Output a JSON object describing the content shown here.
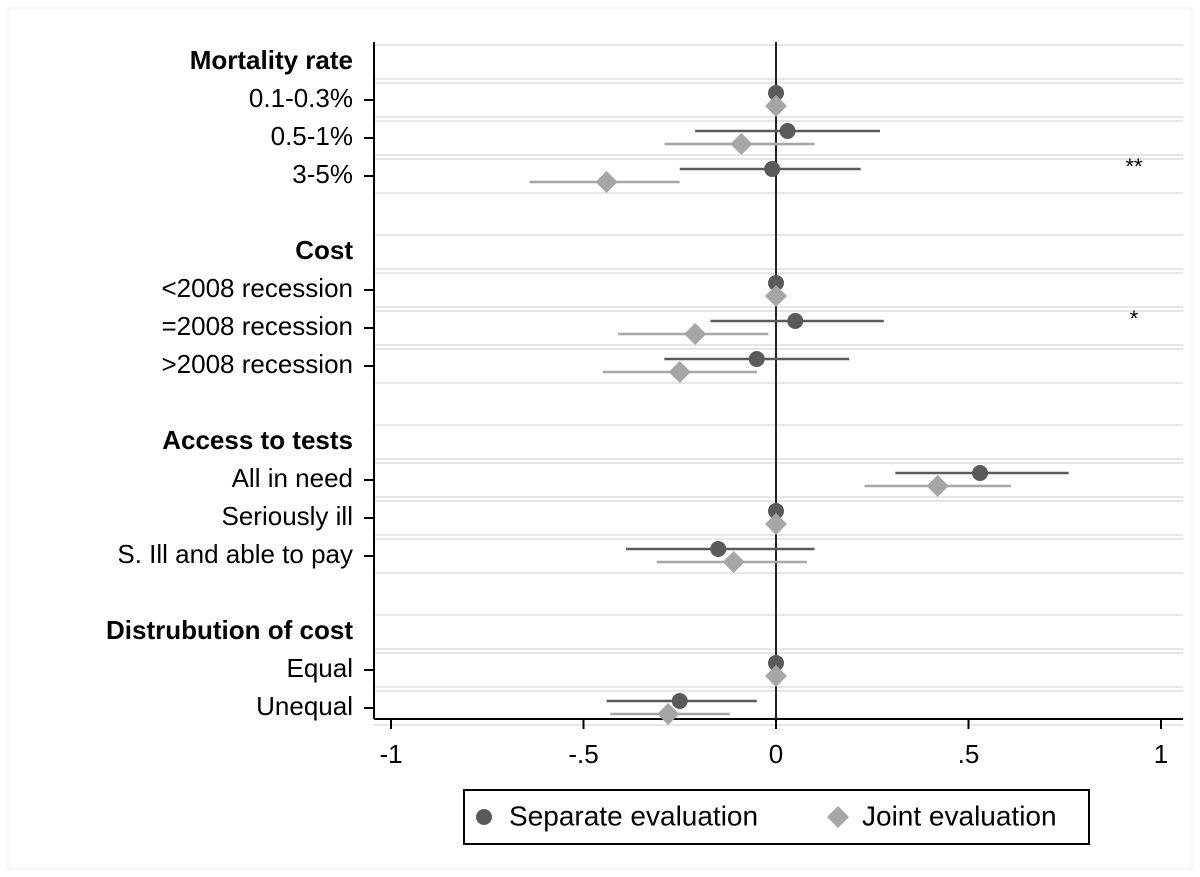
{
  "chart_data": {
    "type": "scatter",
    "subtype": "coefficient-plot-horizontal",
    "title": "",
    "xlabel": "",
    "ylabel": "",
    "xlim": [
      -1,
      1
    ],
    "xticks": [
      {
        "value": -1,
        "label": "-1"
      },
      {
        "value": -0.5,
        "label": "-.5"
      },
      {
        "value": 0,
        "label": "0"
      },
      {
        "value": 0.5,
        "label": ".5"
      },
      {
        "value": 1,
        "label": "1"
      }
    ],
    "reference_line": 0,
    "grid": "horizontal",
    "legend_position": "bottom",
    "colors": {
      "separate": "#5a5a5a",
      "joint": "#a6a6a6"
    },
    "series": [
      {
        "name": "Separate evaluation",
        "marker": "circle"
      },
      {
        "name": "Joint evaluation",
        "marker": "diamond"
      }
    ],
    "groups": [
      {
        "label": "Mortality rate",
        "items": [
          {
            "label": "0.1-0.3%",
            "separate": {
              "est": 0,
              "lo": 0,
              "hi": 0
            },
            "joint": {
              "est": 0,
              "lo": 0,
              "hi": 0
            },
            "sig": ""
          },
          {
            "label": "0.5-1%",
            "separate": {
              "est": 0.03,
              "lo": -0.21,
              "hi": 0.27
            },
            "joint": {
              "est": -0.09,
              "lo": -0.29,
              "hi": 0.1
            },
            "sig": ""
          },
          {
            "label": "3-5%",
            "separate": {
              "est": -0.01,
              "lo": -0.25,
              "hi": 0.22
            },
            "joint": {
              "est": -0.44,
              "lo": -0.64,
              "hi": -0.25
            },
            "sig": "**"
          }
        ]
      },
      {
        "label": "Cost",
        "items": [
          {
            "label": "<2008 recession",
            "separate": {
              "est": 0,
              "lo": 0,
              "hi": 0
            },
            "joint": {
              "est": 0,
              "lo": 0,
              "hi": 0
            },
            "sig": ""
          },
          {
            "label": "=2008 recession",
            "separate": {
              "est": 0.05,
              "lo": -0.17,
              "hi": 0.28
            },
            "joint": {
              "est": -0.21,
              "lo": -0.41,
              "hi": -0.02
            },
            "sig": "*"
          },
          {
            "label": ">2008 recession",
            "separate": {
              "est": -0.05,
              "lo": -0.29,
              "hi": 0.19
            },
            "joint": {
              "est": -0.25,
              "lo": -0.45,
              "hi": -0.05
            },
            "sig": ""
          }
        ]
      },
      {
        "label": "Access to tests",
        "items": [
          {
            "label": "All in need",
            "separate": {
              "est": 0.53,
              "lo": 0.31,
              "hi": 0.76
            },
            "joint": {
              "est": 0.42,
              "lo": 0.23,
              "hi": 0.61
            },
            "sig": ""
          },
          {
            "label": "Seriously ill",
            "separate": {
              "est": 0,
              "lo": 0,
              "hi": 0
            },
            "joint": {
              "est": 0,
              "lo": 0,
              "hi": 0
            },
            "sig": ""
          },
          {
            "label": "S. Ill and able to pay",
            "separate": {
              "est": -0.15,
              "lo": -0.39,
              "hi": 0.1
            },
            "joint": {
              "est": -0.11,
              "lo": -0.31,
              "hi": 0.08
            },
            "sig": ""
          }
        ]
      },
      {
        "label": "Distrubution of cost",
        "items": [
          {
            "label": "Equal",
            "separate": {
              "est": 0,
              "lo": 0,
              "hi": 0
            },
            "joint": {
              "est": 0,
              "lo": 0,
              "hi": 0
            },
            "sig": ""
          },
          {
            "label": "Unequal",
            "separate": {
              "est": -0.25,
              "lo": -0.44,
              "hi": -0.05
            },
            "joint": {
              "est": -0.28,
              "lo": -0.43,
              "hi": -0.12
            },
            "sig": ""
          }
        ]
      }
    ]
  }
}
